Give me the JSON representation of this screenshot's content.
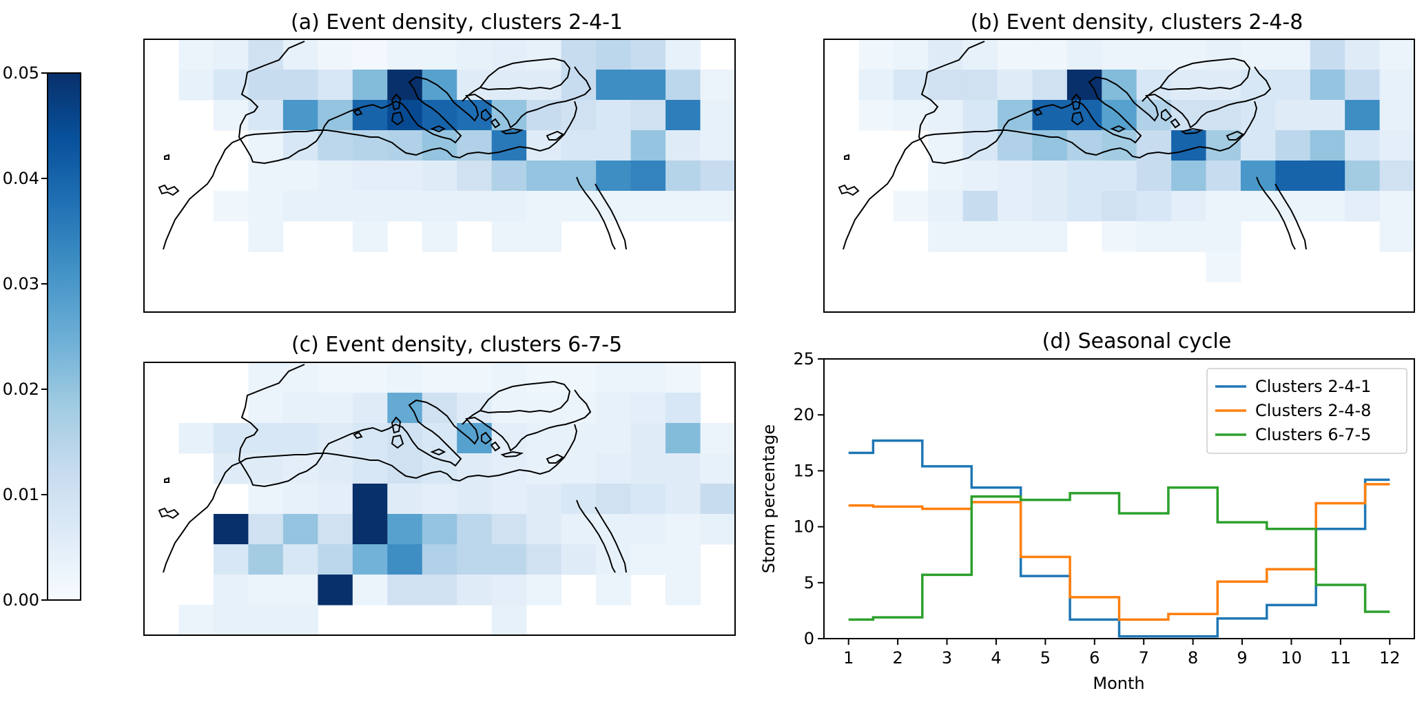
{
  "colorbar": {
    "min": 0.0,
    "max": 0.05,
    "ticks": [
      "0.00",
      "0.01",
      "0.02",
      "0.03",
      "0.04",
      "0.05"
    ],
    "colormap": [
      "#f7fbff",
      "#deebf7",
      "#c6dbef",
      "#9ecae1",
      "#6baed6",
      "#4292c6",
      "#2171b5",
      "#08519c",
      "#08306b"
    ]
  },
  "maps": [
    {
      "title": "(a) Event density, clusters 2-4-1",
      "grid_density": [
        [
          0,
          0.003,
          0.004,
          0.01,
          0.004,
          0.002,
          0.001,
          0.003,
          0.003,
          0.004,
          0.005,
          0.004,
          0.012,
          0.014,
          0.012,
          0.004,
          0
        ],
        [
          0,
          0.004,
          0.008,
          0.012,
          0.012,
          0.008,
          0.022,
          0.05,
          0.028,
          0.006,
          0.006,
          0.006,
          0.012,
          0.032,
          0.032,
          0.014,
          0.003
        ],
        [
          0,
          0,
          0.003,
          0.008,
          0.03,
          0.02,
          0.04,
          0.045,
          0.04,
          0.038,
          0.02,
          0.012,
          0.01,
          0.008,
          0.01,
          0.035,
          0.004
        ],
        [
          0,
          0,
          0,
          0.003,
          0.008,
          0.014,
          0.015,
          0.016,
          0.02,
          0.016,
          0.036,
          0.006,
          0.008,
          0.008,
          0.02,
          0.006,
          0.004
        ],
        [
          0,
          0,
          0,
          0.003,
          0.003,
          0.004,
          0.005,
          0.005,
          0.006,
          0.01,
          0.016,
          0.02,
          0.02,
          0.032,
          0.034,
          0.015,
          0.012
        ],
        [
          0,
          0,
          0.002,
          0.003,
          0.004,
          0.004,
          0.004,
          0.004,
          0.004,
          0.004,
          0.004,
          0.003,
          0.003,
          0.003,
          0.003,
          0.003,
          0.003
        ],
        [
          0,
          0,
          0,
          0.003,
          0,
          0,
          0.003,
          0,
          0.003,
          0,
          0.003,
          0.003,
          0,
          0,
          0,
          0,
          0
        ],
        [
          0,
          0,
          0,
          0,
          0,
          0,
          0,
          0,
          0,
          0,
          0,
          0,
          0,
          0,
          0,
          0,
          0
        ],
        [
          0,
          0,
          0,
          0,
          0,
          0,
          0,
          0,
          0,
          0,
          0,
          0,
          0,
          0,
          0,
          0,
          0
        ]
      ]
    },
    {
      "title": "(b) Event density, clusters 2-4-8",
      "grid_density": [
        [
          0,
          0.002,
          0.003,
          0.006,
          0.004,
          0.002,
          0.002,
          0.004,
          0.003,
          0.003,
          0.003,
          0.004,
          0.003,
          0.003,
          0.012,
          0.006,
          0.003
        ],
        [
          0,
          0.004,
          0.008,
          0.01,
          0.01,
          0.006,
          0.01,
          0.05,
          0.022,
          0.008,
          0.006,
          0.006,
          0.008,
          0.008,
          0.02,
          0.012,
          0.004
        ],
        [
          0,
          0.002,
          0.003,
          0.004,
          0.008,
          0.02,
          0.04,
          0.04,
          0.028,
          0.016,
          0.01,
          0.01,
          0.008,
          0.006,
          0.006,
          0.032,
          0.004
        ],
        [
          0,
          0,
          0,
          0.003,
          0.008,
          0.016,
          0.02,
          0.016,
          0.018,
          0.012,
          0.04,
          0.018,
          0.008,
          0.014,
          0.02,
          0.008,
          0.005
        ],
        [
          0,
          0,
          0,
          0.003,
          0.004,
          0.005,
          0.006,
          0.008,
          0.008,
          0.012,
          0.02,
          0.012,
          0.03,
          0.04,
          0.04,
          0.018,
          0.01
        ],
        [
          0,
          0,
          0.002,
          0.004,
          0.012,
          0.005,
          0.006,
          0.008,
          0.01,
          0.008,
          0.005,
          0.003,
          0.003,
          0.003,
          0.003,
          0.005,
          0.003
        ],
        [
          0,
          0,
          0,
          0.003,
          0.003,
          0.003,
          0.003,
          0,
          0.002,
          0.003,
          0.003,
          0.003,
          0,
          0,
          0,
          0,
          0.003
        ],
        [
          0,
          0,
          0,
          0,
          0,
          0,
          0,
          0,
          0,
          0,
          0,
          0.002,
          0,
          0,
          0,
          0,
          0
        ],
        [
          0,
          0,
          0,
          0,
          0,
          0,
          0,
          0,
          0,
          0,
          0,
          0,
          0,
          0,
          0,
          0,
          0
        ]
      ]
    },
    {
      "title": "(c) Event density, clusters 6-7-5",
      "grid_density": [
        [
          0,
          0,
          0,
          0.003,
          0.003,
          0.002,
          0.002,
          0.003,
          0.002,
          0.002,
          0.003,
          0.002,
          0.002,
          0.003,
          0.003,
          0.002,
          0
        ],
        [
          0,
          0,
          0,
          0.003,
          0.004,
          0.004,
          0.006,
          0.026,
          0.01,
          0.006,
          0.003,
          0.003,
          0.003,
          0.004,
          0.005,
          0.008,
          0
        ],
        [
          0,
          0.004,
          0.008,
          0.008,
          0.008,
          0.006,
          0.008,
          0.01,
          0.008,
          0.028,
          0.005,
          0.004,
          0.004,
          0.004,
          0.006,
          0.022,
          0.003
        ],
        [
          0,
          0,
          0.006,
          0.006,
          0.005,
          0.006,
          0.008,
          0.01,
          0.008,
          0.006,
          0.005,
          0.004,
          0.004,
          0.005,
          0.006,
          0.006,
          0.004
        ],
        [
          0,
          0,
          0,
          0.003,
          0.004,
          0.005,
          0.05,
          0.006,
          0.005,
          0.006,
          0.005,
          0.006,
          0.008,
          0.01,
          0.008,
          0.006,
          0.012
        ],
        [
          0,
          0,
          0.05,
          0.01,
          0.02,
          0.01,
          0.05,
          0.028,
          0.02,
          0.014,
          0.01,
          0.006,
          0.004,
          0.004,
          0.004,
          0.003,
          0.004
        ],
        [
          0,
          0,
          0.008,
          0.018,
          0.008,
          0.014,
          0.024,
          0.032,
          0.016,
          0.014,
          0.014,
          0.01,
          0.006,
          0.004,
          0.003,
          0.003,
          0
        ],
        [
          0,
          0,
          0.004,
          0.003,
          0.003,
          0.05,
          0.003,
          0.01,
          0.01,
          0.006,
          0.005,
          0.003,
          0,
          0.003,
          0,
          0.003,
          0
        ],
        [
          0,
          0.003,
          0.004,
          0.004,
          0.004,
          0,
          0,
          0,
          0,
          0,
          0.004,
          0,
          0,
          0,
          0,
          0,
          0
        ]
      ]
    },
    {
      "title": "(b) Event density, clusters 2-4-8",
      "grid_density": []
    }
  ],
  "chart_data": {
    "type": "line",
    "title": "(d) Seasonal cycle",
    "xlabel": "Month",
    "ylabel": "Storm percentage",
    "xlim": [
      0.5,
      12.5
    ],
    "ylim": [
      0,
      25
    ],
    "xticks": [
      "1",
      "2",
      "3",
      "4",
      "5",
      "6",
      "7",
      "8",
      "9",
      "10",
      "11",
      "12"
    ],
    "yticks": [
      "0",
      "5",
      "10",
      "15",
      "20",
      "25"
    ],
    "legend_position": "top-right",
    "x": [
      1,
      2,
      3,
      4,
      5,
      6,
      7,
      8,
      9,
      10,
      11,
      12
    ],
    "series": [
      {
        "name": "Clusters 2-4-1",
        "color": "#1f77b4",
        "values": [
          16.6,
          17.7,
          15.4,
          13.5,
          5.6,
          1.7,
          0.2,
          0.2,
          1.8,
          3.0,
          9.8,
          14.2
        ]
      },
      {
        "name": "Clusters 2-4-8",
        "color": "#ff7f0e",
        "values": [
          11.9,
          11.8,
          11.6,
          12.2,
          7.3,
          3.7,
          1.7,
          2.2,
          5.1,
          6.2,
          12.1,
          13.8
        ]
      },
      {
        "name": "Clusters 6-7-5",
        "color": "#2ca02c",
        "values": [
          1.7,
          1.9,
          5.7,
          12.7,
          12.4,
          13.0,
          11.2,
          13.5,
          10.4,
          9.8,
          4.8,
          2.4
        ]
      }
    ]
  }
}
